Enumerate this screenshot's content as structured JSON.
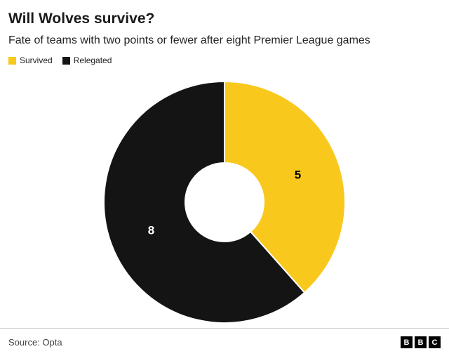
{
  "header": {
    "title": "Will Wolves survive?",
    "subtitle": "Fate of teams with two points or fewer after eight Premier League games"
  },
  "chart_data": {
    "type": "pie",
    "donut": true,
    "title": "Will Wolves survive?",
    "subtitle": "Fate of teams with two points or fewer after eight Premier League games",
    "legend_position": "top-left",
    "start_angle_deg": 0,
    "direction": "clockwise",
    "total": 13,
    "series": [
      {
        "name": "Survived",
        "value": 5,
        "color": "#F8C81C",
        "label_color": "#000000"
      },
      {
        "name": "Relegated",
        "value": 8,
        "color": "#141414",
        "label_color": "#FFFFFF"
      }
    ]
  },
  "footer": {
    "source": "Source: Opta",
    "logo_letters": [
      "B",
      "B",
      "C"
    ]
  }
}
